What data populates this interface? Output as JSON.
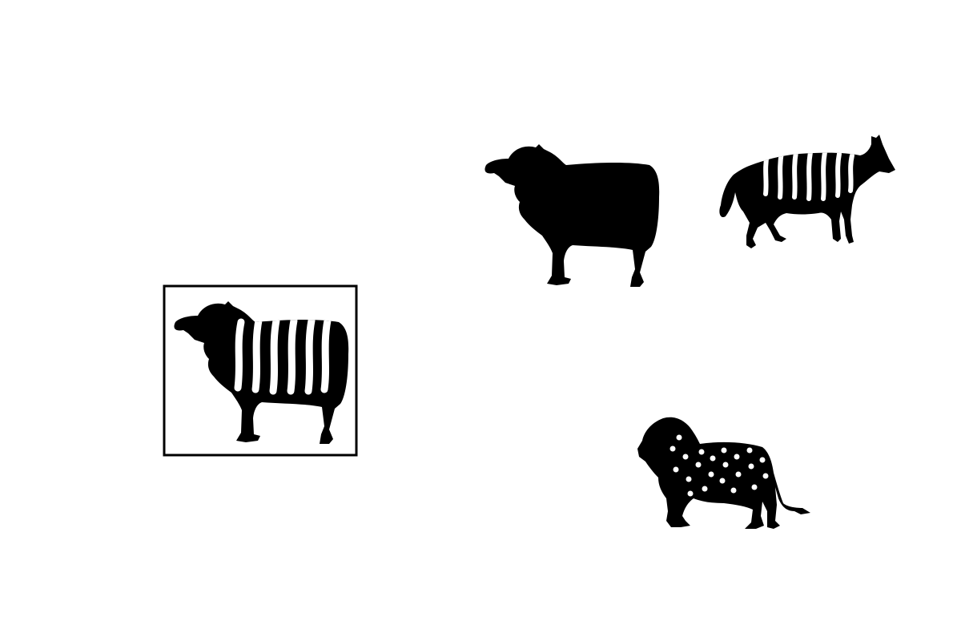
{
  "colors": {
    "background": "#ffffff",
    "silhouette": "#000000",
    "pattern": "#ffffff",
    "frame": "#000000"
  },
  "target": {
    "animal": "sheep-icon",
    "pattern": "vertical-stripes"
  },
  "options": [
    {
      "animal": "sheep-icon",
      "pattern": "none"
    },
    {
      "animal": "wolf-icon",
      "pattern": "vertical-stripes"
    },
    {
      "animal": "lion-icon",
      "pattern": "dots"
    }
  ]
}
